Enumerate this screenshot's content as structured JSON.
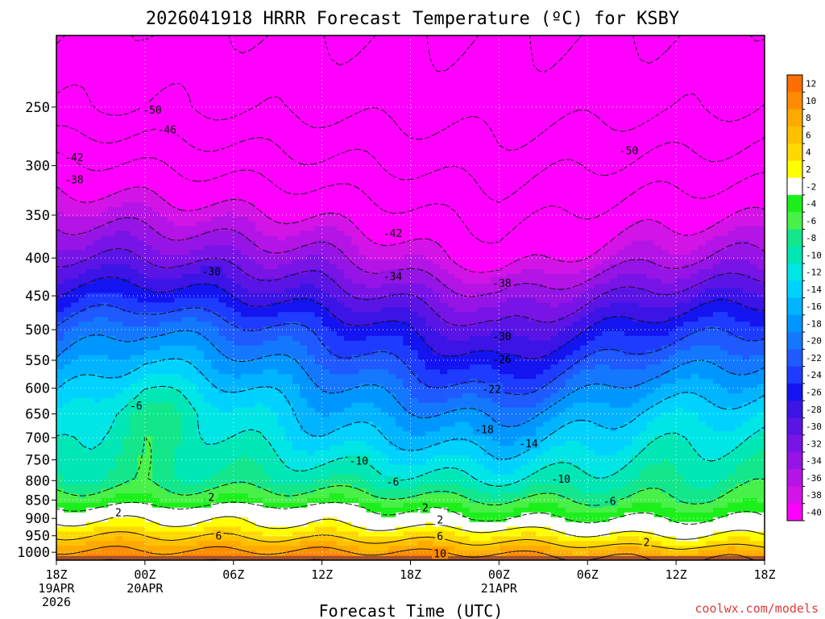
{
  "chart_data": {
    "type": "heatmap",
    "title": "2026041918 HRRR Forecast Temperature (ºC) for KSBY",
    "xlabel": "Forecast Time (UTC)",
    "ylabel": "",
    "credit": "coolwx.com/models",
    "x_ticks": [
      {
        "hours": 0,
        "label": "18Z",
        "date": "19APR",
        "year": "2026"
      },
      {
        "hours": 6,
        "label": "00Z",
        "date": "20APR"
      },
      {
        "hours": 12,
        "label": "06Z"
      },
      {
        "hours": 18,
        "label": "12Z"
      },
      {
        "hours": 24,
        "label": "18Z"
      },
      {
        "hours": 30,
        "label": "00Z",
        "date": "21APR"
      },
      {
        "hours": 36,
        "label": "06Z"
      },
      {
        "hours": 42,
        "label": "12Z"
      },
      {
        "hours": 48,
        "label": "18Z"
      }
    ],
    "xlim_hours": [
      0,
      48
    ],
    "y_scale": "log",
    "y_ticks": [
      250,
      300,
      350,
      400,
      450,
      500,
      550,
      600,
      650,
      700,
      750,
      800,
      850,
      900,
      950,
      1000
    ],
    "ylim_hPa": [
      200,
      1025
    ],
    "grid": true,
    "colorbar": {
      "placement": "right",
      "levels": [
        12,
        10,
        8,
        6,
        4,
        2,
        -2,
        -4,
        -6,
        -8,
        -10,
        -12,
        -14,
        -16,
        -18,
        -20,
        -22,
        -24,
        -26,
        -28,
        -30,
        -32,
        -34,
        -36,
        -38,
        -40
      ],
      "colors": [
        "#ff6e00",
        "#ff8c00",
        "#ffaa00",
        "#ffc000",
        "#ffd800",
        "#ffff00",
        "#ffffff",
        "#1cf01c",
        "#48f048",
        "#14e68c",
        "#00e6b4",
        "#00e6e6",
        "#00d2ff",
        "#00b4ff",
        "#0096ff",
        "#1478ff",
        "#1e5aff",
        "#1e3cff",
        "#1414f0",
        "#3c14e6",
        "#5a14e6",
        "#7814e6",
        "#9614e6",
        "#b414e6",
        "#d214e6",
        "#ff00ff"
      ]
    },
    "surface_color": "#a0522d",
    "contour_labels": [
      {
        "text": "-50",
        "hours": 6.5,
        "hPa": 252
      },
      {
        "text": "-46",
        "hours": 7.5,
        "hPa": 268
      },
      {
        "text": "-42",
        "hours": 1.2,
        "hPa": 292
      },
      {
        "text": "-38",
        "hours": 1.2,
        "hPa": 313
      },
      {
        "text": "-50",
        "hours": 38.8,
        "hPa": 286
      },
      {
        "text": "-42",
        "hours": 22.8,
        "hPa": 370
      },
      {
        "text": "-30",
        "hours": 10.5,
        "hPa": 417
      },
      {
        "text": "-34",
        "hours": 22.8,
        "hPa": 423
      },
      {
        "text": "-38",
        "hours": 30.2,
        "hPa": 432
      },
      {
        "text": "-30",
        "hours": 30.2,
        "hPa": 510
      },
      {
        "text": "-26",
        "hours": 30.2,
        "hPa": 548
      },
      {
        "text": "-22",
        "hours": 29.5,
        "hPa": 601
      },
      {
        "text": "-18",
        "hours": 29.0,
        "hPa": 682
      },
      {
        "text": "-14",
        "hours": 32.0,
        "hPa": 712
      },
      {
        "text": "-6",
        "hours": 5.4,
        "hPa": 633
      },
      {
        "text": "-10",
        "hours": 20.5,
        "hPa": 752
      },
      {
        "text": "-6",
        "hours": 22.8,
        "hPa": 802
      },
      {
        "text": "-10",
        "hours": 34.2,
        "hPa": 795
      },
      {
        "text": "-6",
        "hours": 37.5,
        "hPa": 852
      },
      {
        "text": "2",
        "hours": 10.5,
        "hPa": 842
      },
      {
        "text": "2",
        "hours": 4.2,
        "hPa": 883
      },
      {
        "text": "2",
        "hours": 25.0,
        "hPa": 870
      },
      {
        "text": "2",
        "hours": 26.0,
        "hPa": 903
      },
      {
        "text": "6",
        "hours": 11.0,
        "hPa": 949
      },
      {
        "text": "6",
        "hours": 26.0,
        "hPa": 951
      },
      {
        "text": "2",
        "hours": 40.0,
        "hPa": 969
      },
      {
        "text": "10",
        "hours": 26.0,
        "hPa": 1003
      }
    ]
  }
}
